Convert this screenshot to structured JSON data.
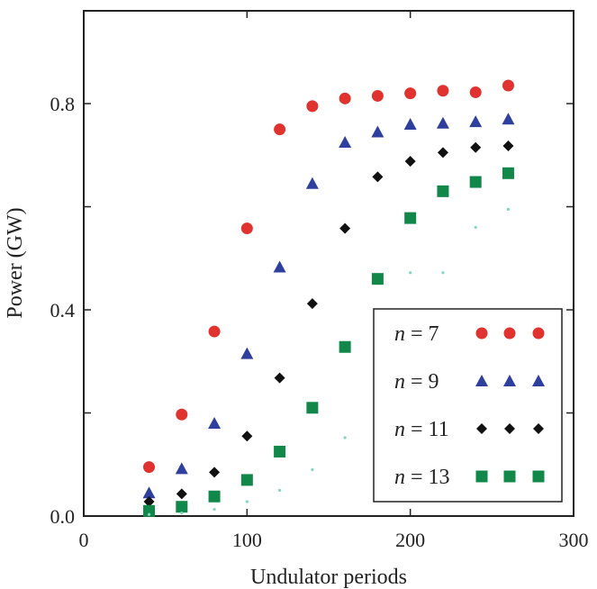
{
  "chart_data": {
    "type": "scatter",
    "xlabel": "Undulator periods",
    "ylabel": "Power (GW)",
    "xlim": [
      0,
      300
    ],
    "ylim": [
      0,
      0.98
    ],
    "xticks": [
      0,
      100,
      200,
      300
    ],
    "xtick_labels": [
      "0",
      "100",
      "200",
      "300"
    ],
    "yticks": [
      0.0,
      0.4,
      0.8
    ],
    "ytick_labels": [
      "0.0",
      "0.4",
      "0.8"
    ],
    "y_minor_ticks": [
      0.2,
      0.6
    ],
    "legend_position": "bottom-right",
    "x": [
      40,
      60,
      80,
      100,
      120,
      140,
      160,
      180,
      200,
      220,
      240,
      260
    ],
    "series": [
      {
        "name": "n = 7",
        "label_var": "n",
        "label_rest": "= 7",
        "marker": "circle",
        "color": "#e0322e",
        "values": [
          0.095,
          0.197,
          0.358,
          0.558,
          0.75,
          0.795,
          0.81,
          0.815,
          0.82,
          0.825,
          0.822,
          0.835
        ]
      },
      {
        "name": "n = 9",
        "label_var": "n",
        "label_rest": "= 9",
        "marker": "triangle",
        "color": "#2e3f9e",
        "values": [
          0.045,
          0.092,
          0.18,
          0.315,
          0.483,
          0.645,
          0.725,
          0.745,
          0.76,
          0.762,
          0.765,
          0.77
        ]
      },
      {
        "name": "n = 11",
        "label_var": "n",
        "label_rest": "= 11",
        "marker": "diamond",
        "color": "#111111",
        "values": [
          0.028,
          0.043,
          0.085,
          0.155,
          0.268,
          0.412,
          0.558,
          0.658,
          0.688,
          0.705,
          0.715,
          0.718
        ]
      },
      {
        "name": "n = 13",
        "label_var": "n",
        "label_rest": "= 13",
        "marker": "square",
        "color": "#12874a",
        "values": [
          0.01,
          0.018,
          0.038,
          0.07,
          0.125,
          0.21,
          0.328,
          0.46,
          0.578,
          0.63,
          0.648,
          0.665
        ]
      },
      {
        "marker": "dot",
        "color": "#7fd6c2",
        "values": [
          0.003,
          0.006,
          0.013,
          0.028,
          0.05,
          0.09,
          0.152,
          0.315,
          0.472,
          0.472,
          0.56,
          0.595
        ],
        "x": [
          40,
          60,
          80,
          100,
          120,
          140,
          160,
          180,
          200,
          220,
          240,
          260
        ]
      }
    ]
  }
}
